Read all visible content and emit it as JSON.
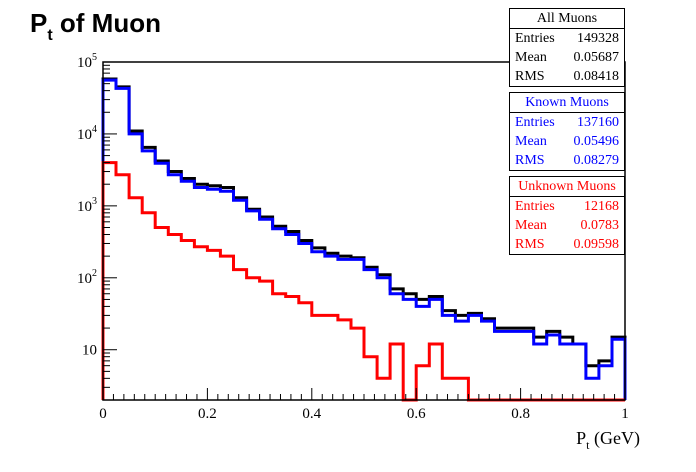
{
  "title": {
    "main": "P",
    "sub": "t",
    "rest": " of Muon"
  },
  "xlabel": {
    "main": "P",
    "sub": "t",
    "rest": " (GeV)"
  },
  "stats": [
    {
      "name": "All Muons",
      "color": "#000000",
      "rows": [
        {
          "label": "Entries",
          "value": "149328"
        },
        {
          "label": "Mean",
          "value": "0.05687"
        },
        {
          "label": "RMS",
          "value": "0.08418"
        }
      ]
    },
    {
      "name": "Known Muons",
      "color": "#0000ff",
      "rows": [
        {
          "label": "Entries",
          "value": "137160"
        },
        {
          "label": "Mean",
          "value": "0.05496"
        },
        {
          "label": "RMS",
          "value": "0.08279"
        }
      ]
    },
    {
      "name": "Unknown Muons",
      "color": "#ff0000",
      "rows": [
        {
          "label": "Entries",
          "value": "12168"
        },
        {
          "label": "Mean",
          "value": "0.0783"
        },
        {
          "label": "RMS",
          "value": "0.09598"
        }
      ]
    }
  ],
  "chart_data": {
    "type": "histogram",
    "scale_y": "log",
    "xlim": [
      0,
      1
    ],
    "ylim": [
      2,
      100000
    ],
    "bin_width": 0.025,
    "x_ticks": [
      "0",
      "0.2",
      "0.4",
      "0.6",
      "0.8",
      "1"
    ],
    "y_ticks": [
      {
        "value": 10,
        "label": "10",
        "exp": ""
      },
      {
        "value": 100,
        "label": "10",
        "exp": "2"
      },
      {
        "value": 1000,
        "label": "10",
        "exp": "3"
      },
      {
        "value": 10000,
        "label": "10",
        "exp": "4"
      },
      {
        "value": 100000,
        "label": "10",
        "exp": "5"
      }
    ],
    "series": [
      {
        "name": "All Muons",
        "color": "#000000",
        "values": [
          58000,
          45000,
          11000,
          6500,
          4200,
          3000,
          2400,
          2000,
          1900,
          1800,
          1300,
          900,
          700,
          520,
          440,
          330,
          260,
          220,
          200,
          190,
          140,
          110,
          70,
          60,
          50,
          55,
          35,
          30,
          32,
          27,
          20,
          20,
          20,
          15,
          18,
          15,
          12,
          6,
          7,
          15
        ]
      },
      {
        "name": "Known Muons",
        "color": "#0000ff",
        "values": [
          56000,
          43000,
          10000,
          5800,
          3900,
          2700,
          2200,
          1800,
          1700,
          1600,
          1200,
          850,
          650,
          480,
          400,
          300,
          230,
          200,
          180,
          180,
          130,
          100,
          60,
          50,
          40,
          50,
          30,
          25,
          30,
          25,
          18,
          18,
          18,
          12,
          16,
          12,
          12,
          4,
          6,
          14
        ]
      },
      {
        "name": "Unknown Muons",
        "color": "#ff0000",
        "values": [
          4000,
          2700,
          1300,
          800,
          500,
          400,
          330,
          270,
          240,
          200,
          130,
          100,
          90,
          60,
          55,
          45,
          30,
          30,
          26,
          20,
          8,
          4,
          12,
          2,
          6,
          12,
          4,
          4,
          2,
          2,
          2,
          2,
          2,
          2,
          2,
          2,
          2,
          2,
          2,
          2
        ]
      }
    ]
  }
}
